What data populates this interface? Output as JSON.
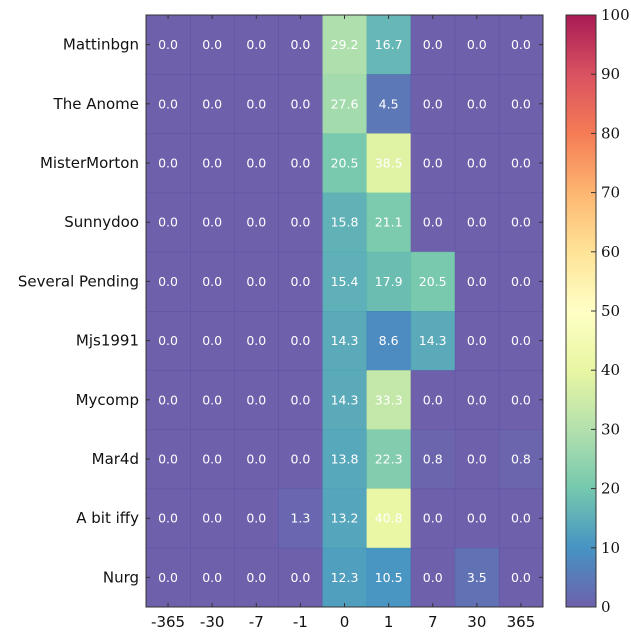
{
  "chart_data": {
    "type": "heatmap",
    "title": "",
    "xlabel": "",
    "ylabel": "",
    "rows": [
      "Mattinbgn",
      "The Anome",
      "MisterMorton",
      "Sunnydoo",
      "Several Pending",
      "Mjs1991",
      "Mycomp",
      "Mar4d",
      "A bit iffy",
      "Nurg"
    ],
    "columns": [
      "-365",
      "-30",
      "-7",
      "-1",
      "0",
      "1",
      "7",
      "30",
      "365"
    ],
    "values": [
      [
        0.0,
        0.0,
        0.0,
        0.0,
        29.2,
        16.7,
        0.0,
        0.0,
        0.0
      ],
      [
        0.0,
        0.0,
        0.0,
        0.0,
        27.6,
        4.5,
        0.0,
        0.0,
        0.0
      ],
      [
        0.0,
        0.0,
        0.0,
        0.0,
        20.5,
        38.5,
        0.0,
        0.0,
        0.0
      ],
      [
        0.0,
        0.0,
        0.0,
        0.0,
        15.8,
        21.1,
        0.0,
        0.0,
        0.0
      ],
      [
        0.0,
        0.0,
        0.0,
        0.0,
        15.4,
        17.9,
        20.5,
        0.0,
        0.0
      ],
      [
        0.0,
        0.0,
        0.0,
        0.0,
        14.3,
        8.6,
        14.3,
        0.0,
        0.0
      ],
      [
        0.0,
        0.0,
        0.0,
        0.0,
        14.3,
        33.3,
        0.0,
        0.0,
        0.0
      ],
      [
        0.0,
        0.0,
        0.0,
        0.0,
        13.8,
        22.3,
        0.8,
        0.0,
        0.8
      ],
      [
        0.0,
        0.0,
        0.0,
        1.3,
        13.2,
        40.8,
        0.0,
        0.0,
        0.0
      ],
      [
        0.0,
        0.0,
        0.0,
        0.0,
        12.3,
        10.5,
        0.0,
        3.5,
        0.0
      ]
    ],
    "value_labels": [
      [
        "0.0",
        "0.0",
        "0.0",
        "0.0",
        "29.2",
        "16.7",
        "0.0",
        "0.0",
        "0.0"
      ],
      [
        "0.0",
        "0.0",
        "0.0",
        "0.0",
        "27.6",
        "4.5",
        "0.0",
        "0.0",
        "0.0"
      ],
      [
        "0.0",
        "0.0",
        "0.0",
        "0.0",
        "20.5",
        "38.5",
        "0.0",
        "0.0",
        "0.0"
      ],
      [
        "0.0",
        "0.0",
        "0.0",
        "0.0",
        "15.8",
        "21.1",
        "0.0",
        "0.0",
        "0.0"
      ],
      [
        "0.0",
        "0.0",
        "0.0",
        "0.0",
        "15.4",
        "17.9",
        "20.5",
        "0.0",
        "0.0"
      ],
      [
        "0.0",
        "0.0",
        "0.0",
        "0.0",
        "14.3",
        "8.6",
        "14.3",
        "0.0",
        "0.0"
      ],
      [
        "0.0",
        "0.0",
        "0.0",
        "0.0",
        "14.3",
        "33.3",
        "0.0",
        "0.0",
        "0.0"
      ],
      [
        "0.0",
        "0.0",
        "0.0",
        "0.0",
        "13.8",
        "22.3",
        "0.8",
        "0.0",
        "0.8"
      ],
      [
        "0.0",
        "0.0",
        "0.0",
        "1.3",
        "13.2",
        "40.8",
        "0.0",
        "0.0",
        "0.0"
      ],
      [
        "0.0",
        "0.0",
        "0.0",
        "0.0",
        "12.3",
        "10.5",
        "0.0",
        "3.5",
        "0.0"
      ]
    ],
    "colorbar": {
      "colormap": "Spectral_r",
      "range": [
        0,
        100
      ],
      "ticks": [
        "0",
        "10",
        "20",
        "30",
        "40",
        "50",
        "60",
        "70",
        "80",
        "90",
        "100"
      ]
    },
    "grid": false,
    "legend": "colorbar-right"
  }
}
